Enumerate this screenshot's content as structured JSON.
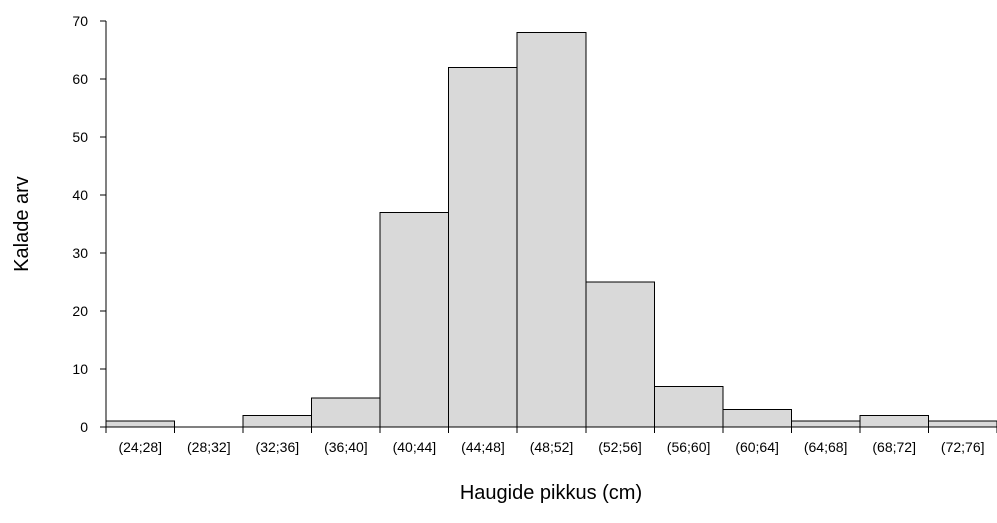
{
  "chart_data": {
    "type": "bar",
    "title": "",
    "xlabel": "Haugide pikkus (cm)",
    "ylabel": "Kalade arv",
    "categories": [
      "(24;28]",
      "(28;32]",
      "(32;36]",
      "(36;40]",
      "(40;44]",
      "(44;48]",
      "(48;52]",
      "(52;56]",
      "(56;60]",
      "(60;64]",
      "(64;68]",
      "(68;72]",
      "(72;76]"
    ],
    "values": [
      1,
      0,
      2,
      5,
      37,
      62,
      68,
      25,
      7,
      3,
      1,
      2,
      1
    ],
    "ylim": [
      0,
      70
    ],
    "yticks": [
      0,
      10,
      20,
      30,
      40,
      50,
      60,
      70
    ],
    "ytick_labels": [
      "0",
      "10",
      "20",
      "30",
      "40",
      "50",
      "60",
      "70"
    ],
    "grid": false,
    "legend": "none",
    "colors": {
      "bar_fill": "#d9d9d9",
      "bar_stroke": "#000000",
      "axis": "#000000",
      "text": "#000000"
    }
  }
}
